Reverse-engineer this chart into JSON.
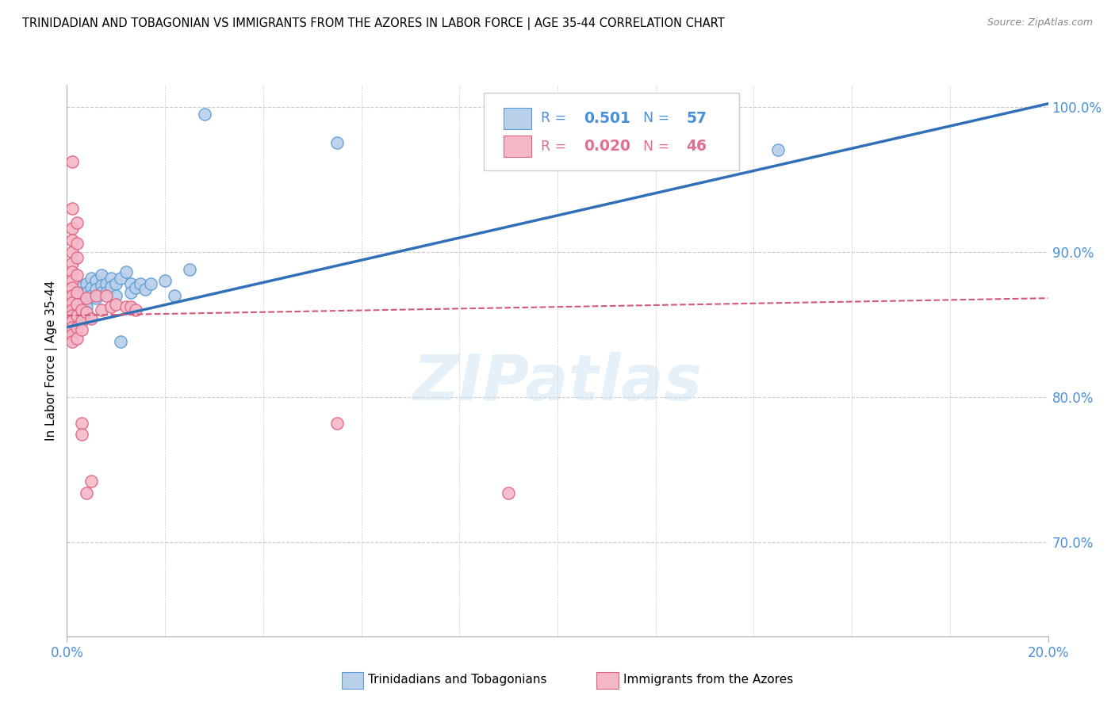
{
  "title": "TRINIDADIAN AND TOBAGONIAN VS IMMIGRANTS FROM THE AZORES IN LABOR FORCE | AGE 35-44 CORRELATION CHART",
  "source": "Source: ZipAtlas.com",
  "ylabel": "In Labor Force | Age 35-44",
  "xlim": [
    0.0,
    0.2
  ],
  "ylim": [
    0.635,
    1.015
  ],
  "ytick_values": [
    0.7,
    0.8,
    0.9,
    1.0
  ],
  "ytick_labels": [
    "70.0%",
    "80.0%",
    "90.0%",
    "100.0%"
  ],
  "r_blue": 0.501,
  "n_blue": 57,
  "r_pink": 0.02,
  "n_pink": 46,
  "blue_fill": "#b8d0ea",
  "blue_edge": "#5b9bd5",
  "pink_fill": "#f5b8c8",
  "pink_edge": "#e06080",
  "line_blue_color": "#3070b8",
  "line_pink_color": "#d05878",
  "legend_blue": "#4a90d9",
  "legend_pink": "#e07090",
  "blue_scatter": [
    [
      0.001,
      0.87
    ],
    [
      0.001,
      0.862
    ],
    [
      0.001,
      0.857
    ],
    [
      0.001,
      0.853
    ],
    [
      0.001,
      0.85
    ],
    [
      0.001,
      0.847
    ],
    [
      0.001,
      0.843
    ],
    [
      0.001,
      0.84
    ],
    [
      0.002,
      0.872
    ],
    [
      0.002,
      0.865
    ],
    [
      0.002,
      0.86
    ],
    [
      0.002,
      0.856
    ],
    [
      0.002,
      0.853
    ],
    [
      0.002,
      0.85
    ],
    [
      0.002,
      0.847
    ],
    [
      0.003,
      0.876
    ],
    [
      0.003,
      0.87
    ],
    [
      0.003,
      0.865
    ],
    [
      0.003,
      0.86
    ],
    [
      0.003,
      0.856
    ],
    [
      0.003,
      0.852
    ],
    [
      0.004,
      0.878
    ],
    [
      0.004,
      0.872
    ],
    [
      0.004,
      0.866
    ],
    [
      0.004,
      0.862
    ],
    [
      0.004,
      0.858
    ],
    [
      0.005,
      0.882
    ],
    [
      0.005,
      0.875
    ],
    [
      0.005,
      0.87
    ],
    [
      0.006,
      0.88
    ],
    [
      0.006,
      0.874
    ],
    [
      0.006,
      0.868
    ],
    [
      0.007,
      0.884
    ],
    [
      0.007,
      0.877
    ],
    [
      0.007,
      0.872
    ],
    [
      0.008,
      0.878
    ],
    [
      0.008,
      0.872
    ],
    [
      0.009,
      0.882
    ],
    [
      0.009,
      0.876
    ],
    [
      0.01,
      0.878
    ],
    [
      0.01,
      0.87
    ],
    [
      0.011,
      0.882
    ],
    [
      0.011,
      0.838
    ],
    [
      0.012,
      0.886
    ],
    [
      0.013,
      0.878
    ],
    [
      0.013,
      0.872
    ],
    [
      0.014,
      0.875
    ],
    [
      0.015,
      0.878
    ],
    [
      0.016,
      0.874
    ],
    [
      0.017,
      0.878
    ],
    [
      0.02,
      0.88
    ],
    [
      0.022,
      0.87
    ],
    [
      0.025,
      0.888
    ],
    [
      0.028,
      0.995
    ],
    [
      0.055,
      0.975
    ],
    [
      0.12,
      0.968
    ],
    [
      0.145,
      0.97
    ]
  ],
  "pink_scatter": [
    [
      0.001,
      0.962
    ],
    [
      0.001,
      0.93
    ],
    [
      0.001,
      0.916
    ],
    [
      0.001,
      0.908
    ],
    [
      0.001,
      0.9
    ],
    [
      0.001,
      0.892
    ],
    [
      0.001,
      0.886
    ],
    [
      0.001,
      0.88
    ],
    [
      0.001,
      0.875
    ],
    [
      0.001,
      0.87
    ],
    [
      0.001,
      0.865
    ],
    [
      0.001,
      0.86
    ],
    [
      0.001,
      0.856
    ],
    [
      0.001,
      0.852
    ],
    [
      0.001,
      0.848
    ],
    [
      0.001,
      0.843
    ],
    [
      0.001,
      0.838
    ],
    [
      0.002,
      0.92
    ],
    [
      0.002,
      0.906
    ],
    [
      0.002,
      0.896
    ],
    [
      0.002,
      0.884
    ],
    [
      0.002,
      0.872
    ],
    [
      0.002,
      0.864
    ],
    [
      0.002,
      0.856
    ],
    [
      0.002,
      0.848
    ],
    [
      0.002,
      0.84
    ],
    [
      0.003,
      0.86
    ],
    [
      0.003,
      0.852
    ],
    [
      0.003,
      0.846
    ],
    [
      0.003,
      0.782
    ],
    [
      0.003,
      0.774
    ],
    [
      0.004,
      0.868
    ],
    [
      0.004,
      0.858
    ],
    [
      0.004,
      0.734
    ],
    [
      0.005,
      0.854
    ],
    [
      0.005,
      0.742
    ],
    [
      0.006,
      0.87
    ],
    [
      0.007,
      0.86
    ],
    [
      0.008,
      0.87
    ],
    [
      0.009,
      0.862
    ],
    [
      0.01,
      0.864
    ],
    [
      0.012,
      0.862
    ],
    [
      0.013,
      0.862
    ],
    [
      0.014,
      0.86
    ],
    [
      0.055,
      0.782
    ],
    [
      0.09,
      0.734
    ]
  ],
  "blue_line_x": [
    0.0,
    0.2
  ],
  "blue_line_y": [
    0.848,
    1.002
  ],
  "pink_line_x": [
    0.0,
    0.2
  ],
  "pink_line_y": [
    0.856,
    0.868
  ]
}
